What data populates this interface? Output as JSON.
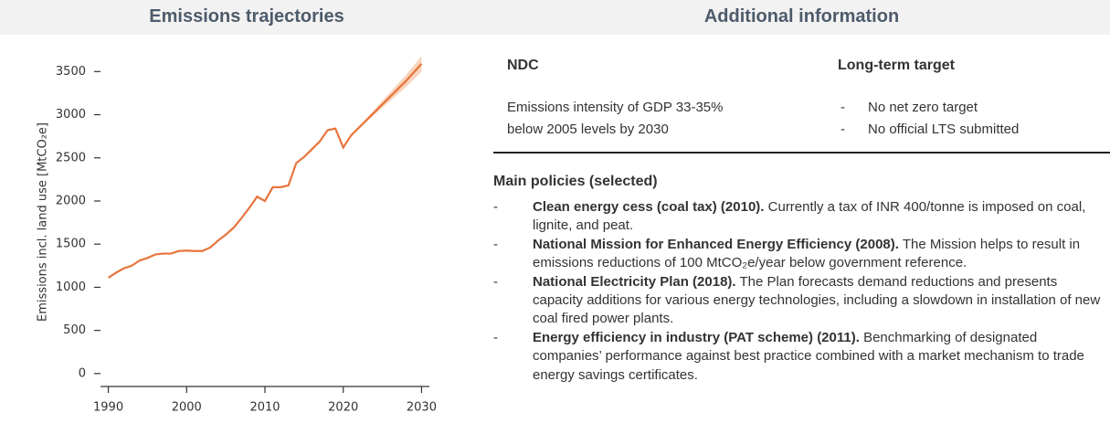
{
  "headers": {
    "left": "Emissions trajectories",
    "right": "Additional information"
  },
  "chart_data": {
    "type": "line",
    "y_label": "Emissions incl. land use [MtCO₂e]",
    "color": "#e8743b",
    "band_color": "#f6c9ad",
    "x": [
      1990,
      1991,
      1992,
      1993,
      1994,
      1995,
      1996,
      1997,
      1998,
      1999,
      2000,
      2001,
      2002,
      2003,
      2004,
      2005,
      2006,
      2007,
      2008,
      2009,
      2010,
      2011,
      2012,
      2013,
      2014,
      2015,
      2016,
      2017,
      2018,
      2019,
      2020,
      2021,
      2022,
      2023,
      2024,
      2025,
      2026,
      2027,
      2028,
      2029,
      2030
    ],
    "values": [
      1110,
      1170,
      1220,
      1250,
      1310,
      1340,
      1380,
      1390,
      1390,
      1420,
      1425,
      1420,
      1420,
      1460,
      1540,
      1610,
      1690,
      1800,
      1920,
      2050,
      2000,
      2160,
      2160,
      2180,
      2440,
      2510,
      2600,
      2690,
      2820,
      2840,
      2620,
      2760,
      2850,
      2940,
      3030,
      3120,
      3210,
      3300,
      3390,
      3490,
      3590
    ],
    "band_low": [
      null,
      null,
      null,
      null,
      null,
      null,
      null,
      null,
      null,
      null,
      null,
      null,
      null,
      null,
      null,
      null,
      null,
      null,
      null,
      null,
      null,
      null,
      null,
      null,
      null,
      null,
      null,
      null,
      null,
      null,
      null,
      2760,
      2840,
      2920,
      3000,
      3080,
      3160,
      3240,
      3320,
      3410,
      3500
    ],
    "band_high": [
      null,
      null,
      null,
      null,
      null,
      null,
      null,
      null,
      null,
      null,
      null,
      null,
      null,
      null,
      null,
      null,
      null,
      null,
      null,
      null,
      null,
      null,
      null,
      null,
      null,
      null,
      null,
      null,
      null,
      null,
      null,
      2760,
      2860,
      2960,
      3060,
      3160,
      3260,
      3360,
      3460,
      3570,
      3680
    ],
    "xlim": [
      1989,
      2031
    ],
    "xticks": [
      1990,
      2000,
      2010,
      2020,
      2030
    ],
    "ylim": [
      -150,
      3800
    ],
    "yticks": [
      0,
      500,
      1000,
      1500,
      2000,
      2500,
      3000,
      3500
    ]
  },
  "ndc": {
    "title": "NDC",
    "text": [
      "Emissions intensity of GDP 33-35%",
      "below 2005 levels by 2030"
    ]
  },
  "long_term": {
    "title": "Long-term target",
    "items": [
      "No net zero target",
      "No official LTS submitted"
    ]
  },
  "policies": {
    "title": "Main policies (selected)",
    "items": [
      {
        "title": "Clean energy cess (coal tax) (2010).",
        "text": "Currently a tax of INR 400/tonne is imposed on coal, lignite, and peat."
      },
      {
        "title": "National Mission for Enhanced Energy Efficiency (2008).",
        "text": "The Mission helps to result in emissions reductions of 100 MtCO₂e/year below government reference."
      },
      {
        "title": "National Electricity Plan (2018).",
        "text": "The Plan forecasts demand reductions and presents capacity additions for various energy technologies, including a slowdown in installation of new coal fired power plants."
      },
      {
        "title": "Energy efficiency in industry (PAT scheme) (2011).",
        "text": "Benchmarking of designated companies’ performance against best practice combined with a market mechanism to trade energy savings certificates."
      }
    ]
  }
}
